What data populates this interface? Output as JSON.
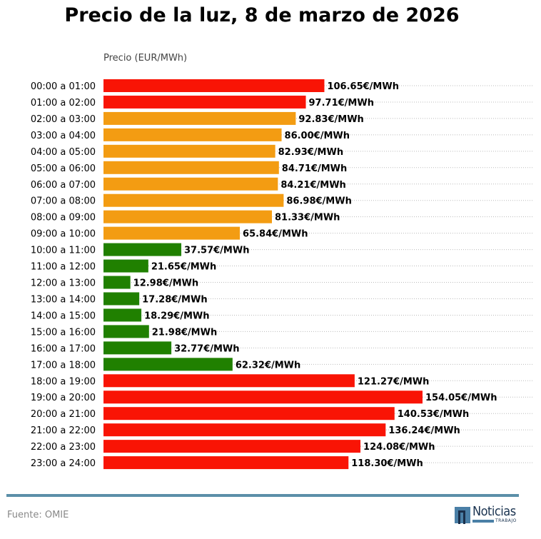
{
  "chart_data": {
    "type": "bar",
    "orientation": "horizontal",
    "title": "Precio de la luz, 8 de marzo de 2026",
    "xlabel": "Precio (EUR/MWh)",
    "value_suffix": "€/MWh",
    "grid": "dotted horizontal lines per row",
    "categories": [
      "00:00 a 01:00",
      "01:00 a 02:00",
      "02:00 a 03:00",
      "03:00 a 04:00",
      "04:00 a 05:00",
      "05:00 a 06:00",
      "06:00 a 07:00",
      "07:00 a 08:00",
      "08:00 a 09:00",
      "09:00 a 10:00",
      "10:00 a 11:00",
      "11:00 a 12:00",
      "12:00 a 13:00",
      "13:00 a 14:00",
      "14:00 a 15:00",
      "15:00 a 16:00",
      "16:00 a 17:00",
      "17:00 a 18:00",
      "18:00 a 19:00",
      "19:00 a 20:00",
      "20:00 a 21:00",
      "21:00 a 22:00",
      "22:00 a 23:00",
      "23:00 a 24:00"
    ],
    "values": [
      106.65,
      97.71,
      92.83,
      86.0,
      82.93,
      84.71,
      84.21,
      86.98,
      81.33,
      65.84,
      37.57,
      21.65,
      12.98,
      17.28,
      18.29,
      21.98,
      32.77,
      62.32,
      121.27,
      154.05,
      140.53,
      136.24,
      124.08,
      118.3
    ],
    "levels": [
      "high",
      "high",
      "mid",
      "mid",
      "mid",
      "mid",
      "mid",
      "mid",
      "mid",
      "mid",
      "low",
      "low",
      "low",
      "low",
      "low",
      "low",
      "low",
      "low",
      "high",
      "high",
      "high",
      "high",
      "high",
      "high"
    ],
    "colors": {
      "high": "#f91405",
      "mid": "#f39c12",
      "low": "#208000",
      "grid": "#bbbbbb"
    }
  },
  "footer": {
    "source": "Fuente: OMIE",
    "logo_text": "Noticias",
    "logo_subtext": "TRABAJO",
    "rule_color": "#5b8fa8"
  }
}
